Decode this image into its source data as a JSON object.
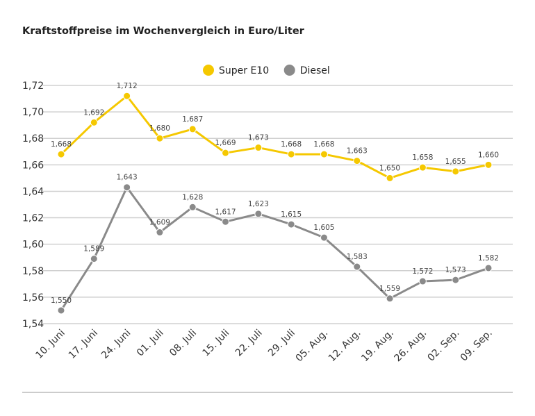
{
  "chart_data": {
    "type": "line",
    "title": "Kraftstoffpreise im Wochenvergleich in Euro/Liter",
    "categories": [
      "10. Juni",
      "17. Juni",
      "24. Juni",
      "01. Juli",
      "08. Juli",
      "15. Juli",
      "22. Juli",
      "29. Juli",
      "05. Aug.",
      "12. Aug.",
      "19. Aug.",
      "26. Aug.",
      "02. Sep.",
      "09. Sep."
    ],
    "series": [
      {
        "name": "Super E10",
        "color": "#f5c800",
        "values": [
          1.668,
          1.692,
          1.712,
          1.68,
          1.687,
          1.669,
          1.673,
          1.668,
          1.668,
          1.663,
          1.65,
          1.658,
          1.655,
          1.66
        ]
      },
      {
        "name": "Diesel",
        "color": "#8a8a8a",
        "values": [
          1.55,
          1.589,
          1.643,
          1.609,
          1.628,
          1.617,
          1.623,
          1.615,
          1.605,
          1.583,
          1.559,
          1.572,
          1.573,
          1.582
        ]
      }
    ],
    "ylim": [
      1.54,
      1.72
    ],
    "yticks": [
      "1,54",
      "1,56",
      "1,58",
      "1,60",
      "1,62",
      "1,64",
      "1,66",
      "1,68",
      "1,70",
      "1,72"
    ],
    "grid": true,
    "legend": "top-center",
    "xlabel": "",
    "ylabel": ""
  }
}
